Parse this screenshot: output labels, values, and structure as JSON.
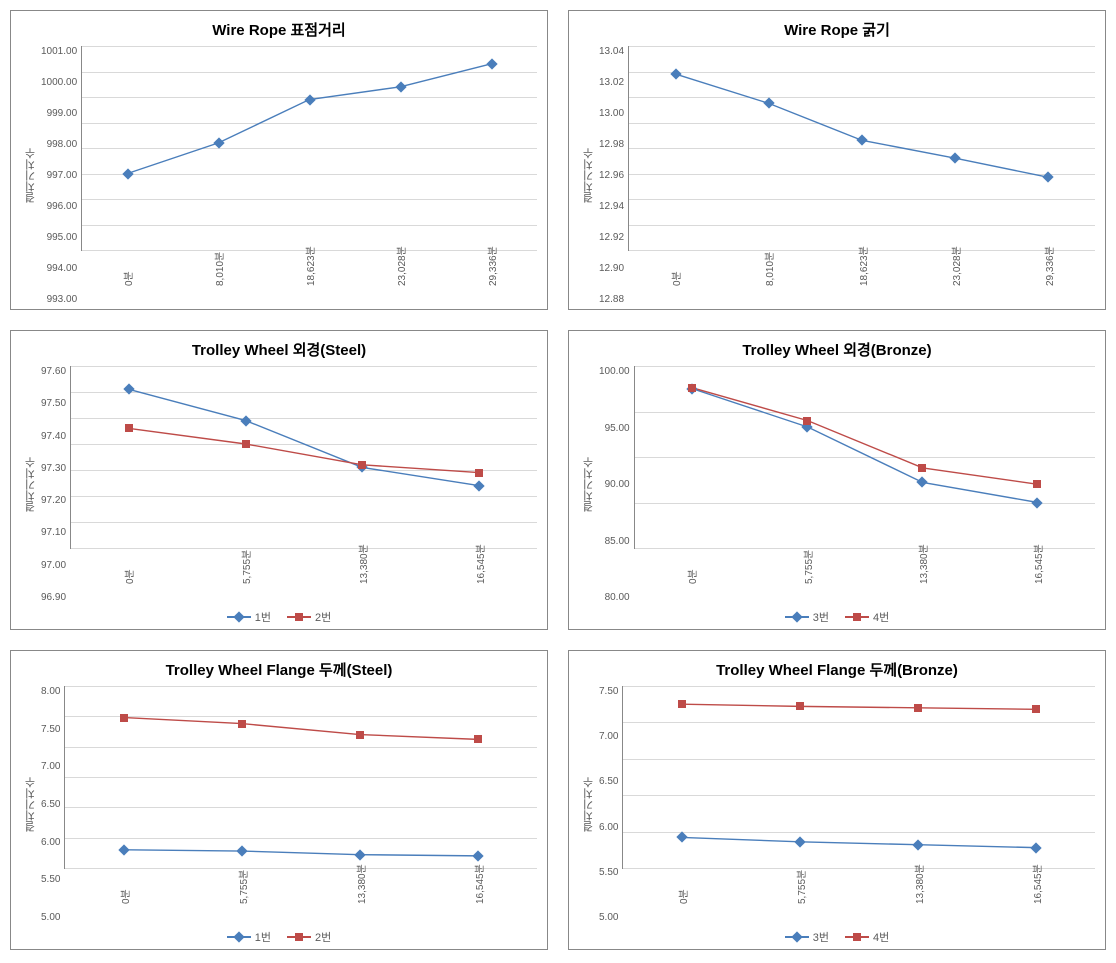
{
  "global": {
    "grid_color": "#d9d9d9",
    "axis_color": "#888888",
    "text_color": "#5a5a5a",
    "background_color": "#ffffff",
    "series_color_1": "#4a7ebb",
    "series_color_2": "#be4b48",
    "yaxis_label": "결치기치수",
    "x_suffix_a": "분",
    "x_suffix_b": "분"
  },
  "charts": [
    {
      "id": "c1",
      "title": "Wire Rope 표점거리",
      "type": "line",
      "x_categories": [
        "0",
        "8,010",
        "18,623",
        "23,028",
        "29,336"
      ],
      "x_suffix_key": "x_suffix_a",
      "ylim": [
        993.0,
        1001.0
      ],
      "ytick_step": 1.0,
      "y_decimals": 2,
      "series": [
        {
          "name": "s1",
          "color_key": "series_color_1",
          "marker": "diamond",
          "values": [
            996.0,
            997.2,
            998.9,
            999.4,
            1000.3
          ]
        }
      ],
      "legend": null
    },
    {
      "id": "c2",
      "title": "Wire Rope 굵기",
      "type": "line",
      "x_categories": [
        "0",
        "8,010",
        "18,623",
        "23,028",
        "29,336"
      ],
      "x_suffix_key": "x_suffix_a",
      "ylim": [
        12.88,
        13.04
      ],
      "ytick_step": 0.02,
      "y_decimals": 2,
      "series": [
        {
          "name": "s1",
          "color_key": "series_color_1",
          "marker": "diamond",
          "values": [
            13.018,
            12.995,
            12.966,
            12.952,
            12.937
          ]
        }
      ],
      "legend": null
    },
    {
      "id": "c3",
      "title": "Trolley Wheel 외경(Steel)",
      "type": "line",
      "x_categories": [
        "0",
        "5,755",
        "13,380",
        "16,545"
      ],
      "x_suffix_key": "x_suffix_b",
      "ylim": [
        96.9,
        97.6
      ],
      "ytick_step": 0.1,
      "y_decimals": 2,
      "series": [
        {
          "name": "1번",
          "color_key": "series_color_1",
          "marker": "diamond",
          "values": [
            97.51,
            97.39,
            97.21,
            97.14
          ]
        },
        {
          "name": "2번",
          "color_key": "series_color_2",
          "marker": "square",
          "values": [
            97.36,
            97.3,
            97.22,
            97.19
          ]
        }
      ],
      "legend": [
        "1번",
        "2번"
      ]
    },
    {
      "id": "c4",
      "title": "Trolley Wheel 외경(Bronze)",
      "type": "line",
      "x_categories": [
        "0",
        "5,755",
        "13,380",
        "16,545"
      ],
      "x_suffix_key": "x_suffix_b",
      "ylim": [
        80.0,
        100.0
      ],
      "ytick_step": 5.0,
      "y_decimals": 2,
      "series": [
        {
          "name": "3번",
          "color_key": "series_color_1",
          "marker": "diamond",
          "values": [
            97.5,
            93.3,
            87.2,
            85.0
          ]
        },
        {
          "name": "4번",
          "color_key": "series_color_2",
          "marker": "square",
          "values": [
            97.6,
            94.0,
            88.8,
            87.0
          ]
        }
      ],
      "legend": [
        "3번",
        "4번"
      ]
    },
    {
      "id": "c5",
      "title": "Trolley Wheel Flange 두께(Steel)",
      "type": "line",
      "x_categories": [
        "0",
        "5,755",
        "13,380",
        "16,545"
      ],
      "x_suffix_key": "x_suffix_b",
      "ylim": [
        5.0,
        8.0
      ],
      "ytick_step": 0.5,
      "y_decimals": 2,
      "series": [
        {
          "name": "1번",
          "color_key": "series_color_1",
          "marker": "diamond",
          "values": [
            5.3,
            5.28,
            5.22,
            5.2
          ]
        },
        {
          "name": "2번",
          "color_key": "series_color_2",
          "marker": "square",
          "values": [
            7.48,
            7.38,
            7.2,
            7.12
          ]
        }
      ],
      "legend": [
        "1번",
        "2번"
      ]
    },
    {
      "id": "c6",
      "title": "Trolley Wheel Flange 두께(Bronze)",
      "type": "line",
      "x_categories": [
        "0",
        "5,755",
        "13,380",
        "16,545"
      ],
      "x_suffix_key": "x_suffix_b",
      "ylim": [
        5.0,
        7.5
      ],
      "ytick_step": 0.5,
      "y_decimals": 2,
      "series": [
        {
          "name": "3번",
          "color_key": "series_color_1",
          "marker": "diamond",
          "values": [
            5.42,
            5.36,
            5.32,
            5.28
          ]
        },
        {
          "name": "4번",
          "color_key": "series_color_2",
          "marker": "square",
          "values": [
            7.25,
            7.22,
            7.2,
            7.18
          ]
        }
      ],
      "legend": [
        "3번",
        "4번"
      ]
    }
  ]
}
